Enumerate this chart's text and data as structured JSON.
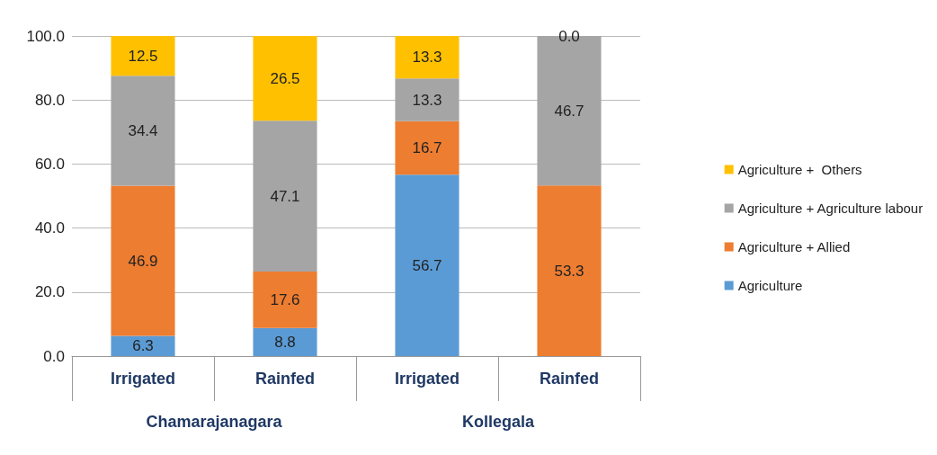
{
  "chart_data": {
    "type": "bar",
    "stacked": true,
    "categories": [
      "Irrigated",
      "Rainfed",
      "Irrigated",
      "Rainfed"
    ],
    "series": [
      {
        "name": "Agriculture",
        "color": "#5b9bd5",
        "values": [
          6.3,
          8.8,
          56.7,
          0
        ],
        "value_labels": [
          "6.3",
          "8.8",
          "56.7",
          null
        ]
      },
      {
        "name": "Agriculture + Allied",
        "color": "#ed7d31",
        "values": [
          46.9,
          17.6,
          16.7,
          53.3
        ],
        "value_labels": [
          "46.9",
          "17.6",
          "16.7",
          "53.3"
        ]
      },
      {
        "name": "Agriculture + Agriculture labour",
        "color": "#a5a5a5",
        "values": [
          34.4,
          47.1,
          13.3,
          46.7
        ],
        "value_labels": [
          "34.4",
          "47.1",
          "13.3",
          "46.7"
        ]
      },
      {
        "name": "Agriculture +  Others",
        "color": "#ffc000",
        "values": [
          12.5,
          26.5,
          13.3,
          0.0
        ],
        "value_labels": [
          "12.5",
          "26.5",
          "13.3",
          "0.0"
        ]
      }
    ],
    "annotations": [
      "Chamarajanagara",
      "Kollegala"
    ],
    "ylim": [
      0,
      100
    ],
    "yticks": [
      {
        "value": 0,
        "label": "0.0"
      },
      {
        "value": 20,
        "label": "20.0"
      },
      {
        "value": 40,
        "label": "40.0"
      },
      {
        "value": 60,
        "label": "60.0"
      },
      {
        "value": 80,
        "label": "80.0"
      },
      {
        "value": 100,
        "label": "100.0"
      }
    ],
    "grid": "y",
    "legend": "right"
  }
}
